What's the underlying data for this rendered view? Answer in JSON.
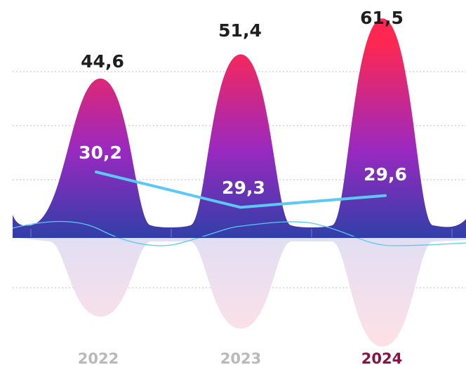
{
  "chart_data": {
    "type": "area",
    "categories": [
      "2022",
      "2023",
      "2024"
    ],
    "highlight_category": "2024",
    "series": [
      {
        "values": [
          44.6,
          51.4,
          61.5
        ],
        "labels": [
          "44,6",
          "51,4",
          "61,5"
        ]
      },
      {
        "values": [
          30.2,
          29.3,
          29.6
        ],
        "labels": [
          "30,2",
          "29,3",
          "29,6"
        ]
      }
    ],
    "grid": true,
    "colors": {
      "hill_top": "#ff2752",
      "hill_mid": "#9a29c0",
      "hill_bottom": "#2f3fa8",
      "line": "#5bc8f5",
      "reflection_top": "#e2dff3",
      "reflection_bottom": "#fde0e7",
      "label_dark": "#1e1e1e",
      "label_light": "#ffffff",
      "year_muted": "#b9b9b9",
      "year_highlight": "#8b1246",
      "grid": "#bdbdbd"
    }
  }
}
